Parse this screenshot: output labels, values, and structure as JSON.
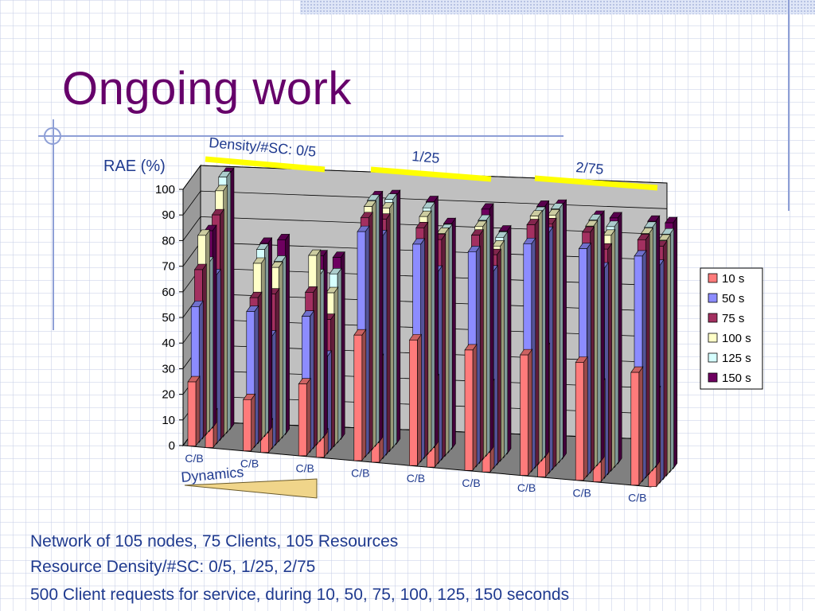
{
  "slide": {
    "title": "Ongoing work",
    "bullets": [
      "Network of 105 nodes, 75 Clients, 105 Resources",
      "Resource Density/#SC: 0/5, 1/25, 2/75",
      "500 Client requests for service, during 10, 50, 75, 100, 125, 150 seconds"
    ]
  },
  "colors": {
    "title": "#66006a",
    "body_text": "#1f3a8f",
    "annotation_text": "#1f3a8f",
    "group_marker": "#ffff00",
    "dynamics_wedge": "#f0d58a"
  },
  "chart_data": {
    "type": "bar",
    "style": "3d-clustered-column",
    "ylabel": "RAE (%)",
    "ylim": [
      0,
      100
    ],
    "yticks": [
      0,
      10,
      20,
      30,
      40,
      50,
      60,
      70,
      80,
      90,
      100
    ],
    "grid": true,
    "legend_position": "right",
    "groups": [
      "Density/#SC: 0/5",
      "1/25",
      "2/75"
    ],
    "dynamics_label": "Dynamics",
    "categories": [
      {
        "label": "C/B",
        "group": "Density/#SC: 0/5"
      },
      {
        "label": "C/B",
        "group": "Density/#SC: 0/5"
      },
      {
        "label": "C/B",
        "group": "Density/#SC: 0/5"
      },
      {
        "label": "C/B",
        "group": "1/25"
      },
      {
        "label": "C/B",
        "group": "1/25"
      },
      {
        "label": "C/B",
        "group": "1/25"
      },
      {
        "label": "C/B",
        "group": "2/75"
      },
      {
        "label": "C/B",
        "group": "2/75"
      },
      {
        "label": "C/B",
        "group": "2/75"
      }
    ],
    "series_names": [
      "10 s",
      "50 s",
      "75 s",
      "100 s",
      "125 s",
      "150 s"
    ],
    "series_colors": [
      "#ff7b7b",
      "#8c8cff",
      "#a33060",
      "#ffffc8",
      "#d6ffff",
      "#6e0060"
    ],
    "values": [
      [
        [
          25,
          53,
          66,
          78,
          66,
          77
        ],
        [
          13,
          66,
          88,
          96,
          100,
          100
        ]
      ],
      [
        [
          20,
          53,
          57,
          69,
          73,
          74
        ],
        [
          11,
          44,
          59,
          68,
          69,
          76
        ]
      ],
      [
        [
          28,
          53,
          61,
          74,
          65,
          71
        ],
        [
          9,
          38,
          51,
          60,
          66,
          71
        ]
      ],
      [
        [
          49,
          88,
          92,
          95,
          96,
          96
        ],
        [
          40,
          87,
          92,
          95,
          97,
          97
        ]
      ],
      [
        [
          49,
          85,
          90,
          93,
          95,
          96
        ],
        [
          34,
          75,
          86,
          87,
          87,
          88
        ]
      ],
      [
        [
          47,
          84,
          89,
          91,
          92,
          95
        ],
        [
          34,
          77,
          82,
          84,
          86,
          87
        ]
      ],
      [
        [
          47,
          89,
          95,
          97,
          97,
          98
        ],
        [
          50,
          94,
          96,
          98,
          99,
          99
        ]
      ],
      [
        [
          46,
          89,
          94,
          95,
          96,
          96
        ],
        [
          38,
          82,
          88,
          92,
          94,
          96
        ]
      ],
      [
        [
          44,
          88,
          93,
          94,
          95,
          96
        ],
        [
          37,
          85,
          91,
          92,
          93,
          96
        ]
      ]
    ]
  }
}
